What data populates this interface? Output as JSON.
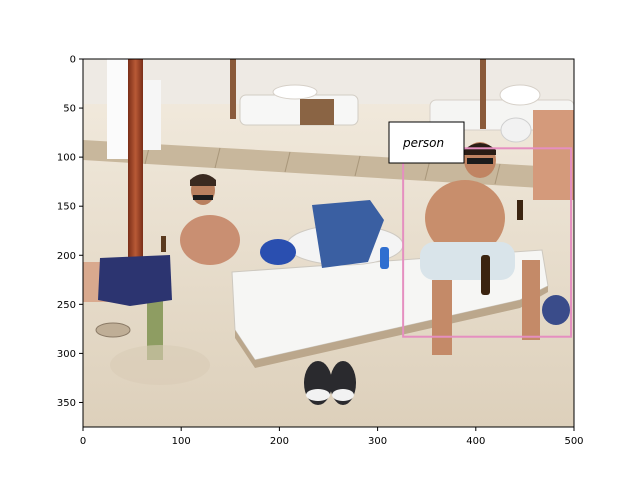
{
  "figure": {
    "image_extent": {
      "x": [
        0,
        500
      ],
      "y": [
        375,
        0
      ]
    },
    "x_ticks": [
      0,
      100,
      200,
      300,
      400,
      500
    ],
    "y_ticks": [
      0,
      50,
      100,
      150,
      200,
      250,
      300,
      350
    ]
  },
  "annotations": [
    {
      "label": "person",
      "box": {
        "x_min": 326,
        "y_min": 91,
        "x_max": 497,
        "y_max": 283
      },
      "box_color": "#e58fc0"
    }
  ],
  "colors": {
    "sand": "#e9dfcf",
    "umbrella_pole": "#a0452a",
    "mattress": "#f4f4f2",
    "boardwalk": "#c9b69a"
  }
}
